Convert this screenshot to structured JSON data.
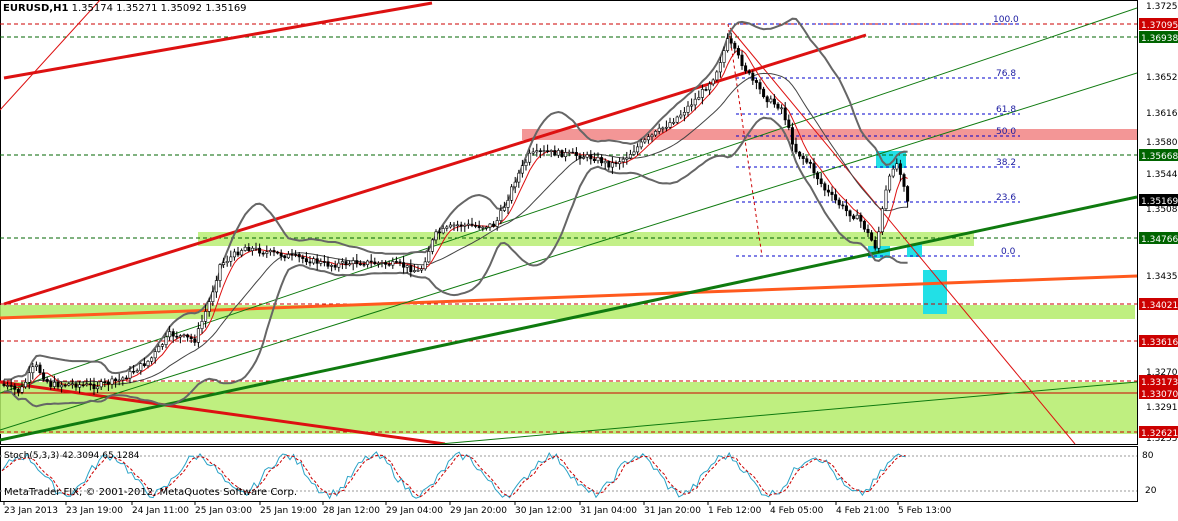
{
  "header": {
    "symbol": "EURUSD,H1",
    "ohlc": "1.35174 1.35271 1.35092 1.35169"
  },
  "copyright": "MetaTrader FIX, © 2001-2012, MetaQuotes Software Corp.",
  "stoch": {
    "label": "Stoch(5,3,3) 42.3094 65.1284",
    "scale": [
      "80",
      "20"
    ]
  },
  "chart_data": {
    "type": "candlestick",
    "instrument": "EURUSD",
    "timeframe": "H1",
    "price_scale": [
      "1.37250",
      "1.36520",
      "1.36160",
      "1.35800",
      "1.35440",
      "1.35080",
      "1.34350",
      "1.32700",
      "1.32910",
      "1.32550"
    ],
    "price_tags": [
      {
        "label": "1.37095",
        "color": "#cc0000"
      },
      {
        "label": "1.36938",
        "color": "#006400"
      },
      {
        "label": "1.35668",
        "color": "#006400"
      },
      {
        "label": "1.35169",
        "color": "#000000"
      },
      {
        "label": "1.34766",
        "color": "#006400"
      },
      {
        "label": "1.34021",
        "color": "#cc0000"
      },
      {
        "label": "1.33616",
        "color": "#cc0000"
      },
      {
        "label": "1.33173",
        "color": "#cc0000"
      },
      {
        "label": "1.33070",
        "color": "#cc0000"
      },
      {
        "label": "1.32621",
        "color": "#cc0000"
      }
    ],
    "fib_levels": [
      "100.0",
      "76.8",
      "61.8",
      "50.0",
      "38.2",
      "23.6",
      "0.0"
    ],
    "time_labels": [
      "23 Jan 2013",
      "23 Jan 19:00",
      "24 Jan 11:00",
      "25 Jan 03:00",
      "25 Jan 19:00",
      "28 Jan 12:00",
      "29 Jan 04:00",
      "29 Jan 20:00",
      "30 Jan 12:00",
      "31 Jan 04:00",
      "31 Jan 20:00",
      "1 Feb 12:00",
      "4 Feb 05:00",
      "4 Feb 21:00",
      "5 Feb 13:00"
    ],
    "colors": {
      "bull": "#ffffff",
      "bear": "#000000",
      "support": "#b4ec6a",
      "resistance": "#f28b8b",
      "highlight": "#22e0e6"
    }
  }
}
